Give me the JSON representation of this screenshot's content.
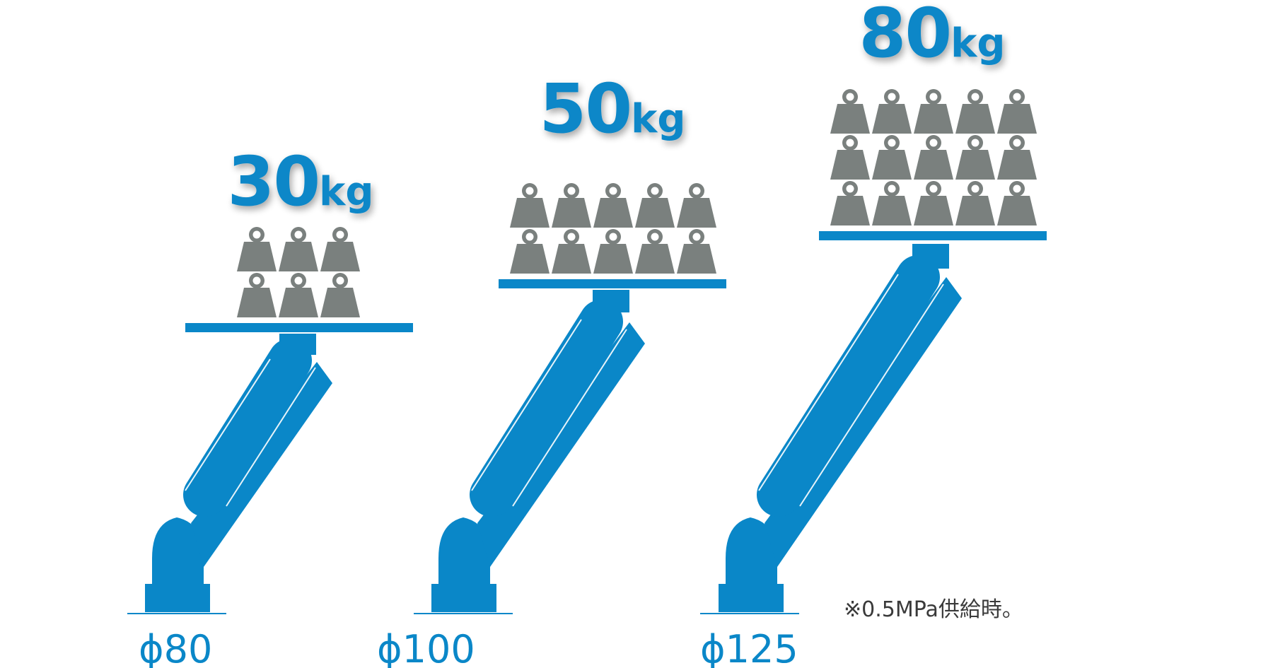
{
  "colors": {
    "arm": "#0a87c8",
    "arm_line": "#e6f3fa",
    "weight": "#7a807e",
    "label": "#0a87c8",
    "note": "#3a3a3a"
  },
  "icon": "weight-icon",
  "units": [
    {
      "id": "phi80",
      "load_value": "30",
      "load_unit": "kg",
      "diameter": "ϕ80",
      "weight_count": 6
    },
    {
      "id": "phi100",
      "load_value": "50",
      "load_unit": "kg",
      "diameter": "ϕ100",
      "weight_count": 10
    },
    {
      "id": "phi125",
      "load_value": "80",
      "load_unit": "kg",
      "diameter": "ϕ125",
      "weight_count": 15
    }
  ],
  "note": "※0.5MPa供給時。"
}
